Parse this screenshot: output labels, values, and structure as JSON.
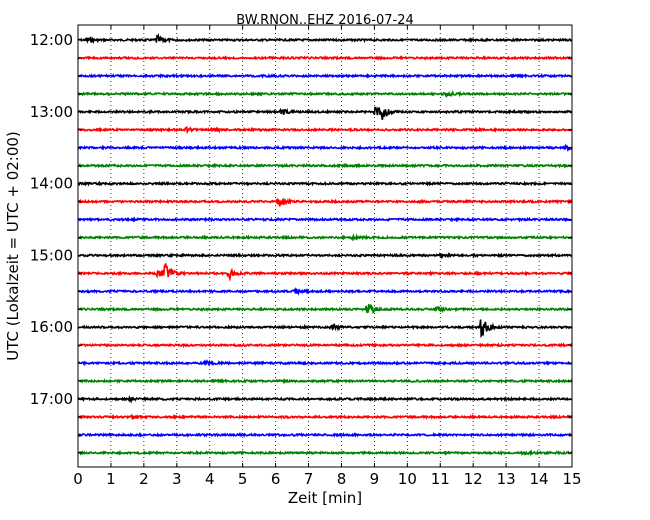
{
  "chart_data": {
    "type": "line",
    "title": "BW.RNON..EHZ 2016-07-24",
    "xlabel": "Zeit  [min]",
    "ylabel": "UTC (Lokalzeit = UTC + 02:00)",
    "xlim": [
      0,
      15
    ],
    "x_ticks": [
      "0",
      "1",
      "2",
      "3",
      "4",
      "5",
      "6",
      "7",
      "8",
      "9",
      "10",
      "11",
      "12",
      "13",
      "14",
      "15"
    ],
    "y_ticks": [
      "12:00",
      "13:00",
      "14:00",
      "15:00",
      "16:00",
      "17:00"
    ],
    "grid": "vertical dotted",
    "trace_colors": [
      "#000000",
      "#ff0000",
      "#0000ff",
      "#008000"
    ],
    "traces": [
      {
        "start": "12:00",
        "color": "#000000",
        "events": [
          {
            "t": 0.3,
            "amp": 0.25
          },
          {
            "t": 2.4,
            "amp": 0.5
          }
        ]
      },
      {
        "start": "12:15",
        "color": "#ff0000",
        "events": []
      },
      {
        "start": "12:30",
        "color": "#0000ff",
        "events": []
      },
      {
        "start": "12:45",
        "color": "#008000",
        "events": [
          {
            "t": 11.2,
            "amp": 0.2
          }
        ]
      },
      {
        "start": "13:00",
        "color": "#000000",
        "events": [
          {
            "t": 6.2,
            "amp": 0.35
          },
          {
            "t": 9.05,
            "amp": 0.75
          },
          {
            "t": 9.25,
            "amp": 0.75
          }
        ]
      },
      {
        "start": "13:15",
        "color": "#ff0000",
        "events": [
          {
            "t": 3.3,
            "amp": 0.2
          },
          {
            "t": 4.1,
            "amp": 0.25
          }
        ]
      },
      {
        "start": "13:30",
        "color": "#0000ff",
        "events": [
          {
            "t": 14.8,
            "amp": 0.3
          }
        ]
      },
      {
        "start": "13:45",
        "color": "#008000",
        "events": []
      },
      {
        "start": "14:00",
        "color": "#000000",
        "events": []
      },
      {
        "start": "14:15",
        "color": "#ff0000",
        "events": [
          {
            "t": 6.1,
            "amp": 0.75
          }
        ]
      },
      {
        "start": "14:30",
        "color": "#0000ff",
        "events": []
      },
      {
        "start": "14:45",
        "color": "#008000",
        "events": [
          {
            "t": 8.3,
            "amp": 0.15
          }
        ]
      },
      {
        "start": "15:00",
        "color": "#000000",
        "events": [
          {
            "t": 11.0,
            "amp": 0.2
          }
        ]
      },
      {
        "start": "15:15",
        "color": "#ff0000",
        "events": [
          {
            "t": 2.45,
            "amp": 0.55
          },
          {
            "t": 2.65,
            "amp": 0.95
          },
          {
            "t": 4.6,
            "amp": 0.6
          }
        ]
      },
      {
        "start": "15:30",
        "color": "#0000ff",
        "events": [
          {
            "t": 6.6,
            "amp": 0.25
          }
        ]
      },
      {
        "start": "15:45",
        "color": "#008000",
        "events": [
          {
            "t": 8.8,
            "amp": 0.85
          },
          {
            "t": 10.9,
            "amp": 0.3
          }
        ]
      },
      {
        "start": "16:00",
        "color": "#000000",
        "events": [
          {
            "t": 7.7,
            "amp": 0.3
          },
          {
            "t": 12.25,
            "amp": 1.2
          }
        ]
      },
      {
        "start": "16:15",
        "color": "#ff0000",
        "events": []
      },
      {
        "start": "16:30",
        "color": "#0000ff",
        "events": [
          {
            "t": 3.9,
            "amp": 0.25
          }
        ]
      },
      {
        "start": "16:45",
        "color": "#008000",
        "events": []
      },
      {
        "start": "17:00",
        "color": "#000000",
        "events": [
          {
            "t": 1.6,
            "amp": 0.15
          }
        ]
      },
      {
        "start": "17:15",
        "color": "#ff0000",
        "events": [
          {
            "t": 1.6,
            "amp": 0.2
          }
        ]
      },
      {
        "start": "17:30",
        "color": "#0000ff",
        "events": []
      },
      {
        "start": "17:45",
        "color": "#008000",
        "events": [
          {
            "t": 13.5,
            "amp": 0.3
          }
        ]
      }
    ]
  }
}
